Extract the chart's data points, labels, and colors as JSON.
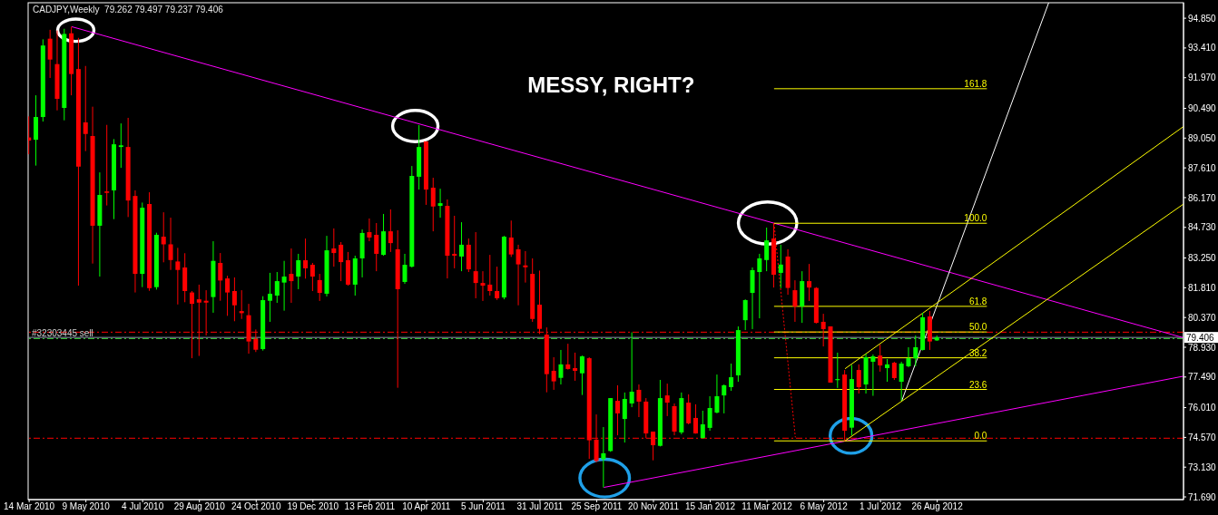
{
  "chart_data": {
    "type": "candlestick",
    "title": "CADJPY,Weekly  79.262 79.497 79.237 79.406",
    "annotations": [
      "MESSY, RIGHT?"
    ],
    "x": [
      "2010-03-14",
      "2010-03-21",
      "2010-03-28",
      "2010-04-04",
      "2010-04-11",
      "2010-04-18",
      "2010-04-25",
      "2010-05-02",
      "2010-05-09",
      "2010-05-16",
      "2010-05-23",
      "2010-05-30",
      "2010-06-06",
      "2010-06-13",
      "2010-06-20",
      "2010-06-27",
      "2010-07-04",
      "2010-07-11",
      "2010-07-18",
      "2010-07-25",
      "2010-08-01",
      "2010-08-08",
      "2010-08-15",
      "2010-08-22",
      "2010-08-29",
      "2010-09-05",
      "2010-09-12",
      "2010-09-19",
      "2010-09-26",
      "2010-10-03",
      "2010-10-10",
      "2010-10-17",
      "2010-10-24",
      "2010-10-31",
      "2010-11-07",
      "2010-11-14",
      "2010-11-21",
      "2010-11-28",
      "2010-12-05",
      "2010-12-12",
      "2010-12-19",
      "2010-12-26",
      "2011-01-02",
      "2011-01-09",
      "2011-01-16",
      "2011-01-23",
      "2011-01-30",
      "2011-02-06",
      "2011-02-13",
      "2011-02-20",
      "2011-02-27",
      "2011-03-06",
      "2011-03-13",
      "2011-03-20",
      "2011-03-27",
      "2011-04-03",
      "2011-04-10",
      "2011-04-17",
      "2011-04-24",
      "2011-05-01",
      "2011-05-08",
      "2011-05-15",
      "2011-05-22",
      "2011-05-29",
      "2011-06-05",
      "2011-06-12",
      "2011-06-19",
      "2011-06-26",
      "2011-07-03",
      "2011-07-10",
      "2011-07-17",
      "2011-07-24",
      "2011-07-31",
      "2011-08-07",
      "2011-08-14",
      "2011-08-21",
      "2011-08-28",
      "2011-09-04",
      "2011-09-11",
      "2011-09-18",
      "2011-09-25",
      "2011-10-02",
      "2011-10-09",
      "2011-10-16",
      "2011-10-23",
      "2011-10-30",
      "2011-11-06",
      "2011-11-13",
      "2011-11-20",
      "2011-11-27",
      "2011-12-04",
      "2011-12-11",
      "2011-12-18",
      "2011-12-25",
      "2012-01-01",
      "2012-01-08",
      "2012-01-15",
      "2012-01-22",
      "2012-01-29",
      "2012-02-05",
      "2012-02-12",
      "2012-02-19",
      "2012-02-26",
      "2012-03-04",
      "2012-03-11",
      "2012-03-18",
      "2012-03-25",
      "2012-04-01",
      "2012-04-08",
      "2012-04-15",
      "2012-04-22",
      "2012-04-29",
      "2012-05-06",
      "2012-05-13",
      "2012-05-20",
      "2012-05-27",
      "2012-06-03",
      "2012-06-10",
      "2012-06-17",
      "2012-06-24",
      "2012-07-01",
      "2012-07-08",
      "2012-07-15",
      "2012-07-22",
      "2012-07-29",
      "2012-08-05",
      "2012-08-12",
      "2012-08-19",
      "2012-08-26"
    ],
    "ohlc": [
      [
        89.08,
        90.1,
        88.27,
        88.93
      ],
      [
        88.97,
        91.12,
        87.72,
        90.07
      ],
      [
        90.07,
        93.83,
        89.85,
        93.53
      ],
      [
        93.86,
        94.29,
        91.96,
        92.85
      ],
      [
        92.63,
        94.26,
        90.39,
        90.95
      ],
      [
        90.51,
        94.34,
        89.91,
        94.09
      ],
      [
        94.12,
        94.44,
        91.12,
        92.15
      ],
      [
        92.39,
        93.9,
        81.91,
        87.67
      ],
      [
        89.81,
        92.54,
        88.42,
        89.25
      ],
      [
        89.15,
        90.57,
        82.98,
        84.81
      ],
      [
        84.81,
        87.39,
        82.35,
        86.3
      ],
      [
        86.47,
        89.69,
        85.79,
        86.4
      ],
      [
        86.52,
        89.0,
        85.13,
        88.75
      ],
      [
        88.62,
        89.76,
        87.61,
        88.7
      ],
      [
        88.62,
        90.03,
        85.23,
        86.03
      ],
      [
        86.25,
        86.52,
        81.58,
        82.48
      ],
      [
        82.48,
        85.93,
        81.84,
        85.68
      ],
      [
        85.86,
        86.43,
        81.66,
        81.79
      ],
      [
        81.84,
        84.47,
        81.72,
        84.37
      ],
      [
        84.28,
        85.46,
        83.04,
        83.91
      ],
      [
        83.91,
        85.2,
        82.67,
        83.15
      ],
      [
        83.08,
        83.74,
        81.0,
        82.67
      ],
      [
        82.79,
        83.48,
        81.11,
        81.65
      ],
      [
        81.58,
        81.65,
        78.4,
        81.03
      ],
      [
        81.25,
        81.96,
        78.51,
        81.09
      ],
      [
        81.18,
        81.69,
        79.5,
        81.09
      ],
      [
        81.36,
        84.06,
        80.6,
        83.11
      ],
      [
        83.01,
        83.49,
        81.18,
        82.16
      ],
      [
        82.26,
        82.39,
        80.45,
        81.58
      ],
      [
        81.65,
        82.31,
        80.19,
        80.96
      ],
      [
        80.68,
        81.69,
        80.3,
        80.58
      ],
      [
        80.48,
        81.03,
        78.62,
        79.21
      ],
      [
        79.34,
        79.79,
        78.7,
        78.81
      ],
      [
        78.84,
        81.4,
        78.77,
        81.21
      ],
      [
        81.18,
        82.53,
        80.16,
        81.52
      ],
      [
        81.43,
        82.57,
        81.08,
        82.13
      ],
      [
        82.06,
        83.11,
        80.7,
        82.35
      ],
      [
        82.48,
        83.71,
        81.08,
        82.13
      ],
      [
        82.35,
        83.45,
        81.74,
        83.14
      ],
      [
        83.14,
        84.19,
        82.25,
        82.75
      ],
      [
        82.92,
        83.01,
        81.65,
        82.35
      ],
      [
        82.18,
        82.48,
        81.17,
        81.56
      ],
      [
        81.52,
        84.32,
        81.39,
        83.62
      ],
      [
        83.71,
        84.68,
        82.83,
        83.49
      ],
      [
        83.89,
        84.02,
        82.13,
        83.05
      ],
      [
        83.14,
        83.54,
        81.91,
        81.96
      ],
      [
        81.96,
        83.36,
        81.43,
        83.23
      ],
      [
        83.23,
        84.63,
        82.31,
        84.46
      ],
      [
        84.5,
        85.16,
        84.06,
        84.24
      ],
      [
        84.37,
        84.94,
        82.61,
        83.45
      ],
      [
        83.4,
        85.38,
        83.36,
        84.54
      ],
      [
        84.54,
        85.6,
        83.54,
        83.97
      ],
      [
        83.67,
        84.59,
        76.97,
        81.74
      ],
      [
        82.09,
        83.45,
        82.0,
        82.92
      ],
      [
        82.83,
        87.7,
        82.79,
        87.22
      ],
      [
        87.18,
        89.68,
        86.56,
        88.62
      ],
      [
        88.89,
        88.89,
        85.82,
        86.56
      ],
      [
        86.65,
        87.13,
        84.54,
        85.74
      ],
      [
        85.77,
        86.6,
        85.2,
        85.9
      ],
      [
        85.77,
        86.08,
        82.26,
        83.36
      ],
      [
        83.45,
        85.29,
        82.75,
        83.36
      ],
      [
        83.32,
        84.98,
        82.61,
        83.89
      ],
      [
        83.89,
        84.19,
        82.57,
        82.7
      ],
      [
        82.61,
        84.5,
        81.3,
        82.04
      ],
      [
        82.04,
        82.61,
        81.17,
        81.91
      ],
      [
        81.96,
        83.4,
        81.43,
        81.65
      ],
      [
        81.65,
        82.83,
        81.22,
        81.3
      ],
      [
        81.34,
        84.32,
        81.25,
        84.28
      ],
      [
        84.24,
        85.06,
        83.3,
        83.42
      ],
      [
        83.67,
        83.89,
        80.96,
        82.94
      ],
      [
        82.89,
        83.58,
        82.06,
        82.8
      ],
      [
        82.48,
        83.23,
        80.16,
        80.3
      ],
      [
        80.99,
        82.64,
        79.57,
        79.82
      ],
      [
        79.54,
        79.89,
        76.75,
        77.63
      ],
      [
        77.79,
        78.45,
        76.87,
        77.28
      ],
      [
        77.45,
        78.8,
        77.13,
        78.1
      ],
      [
        78.1,
        79.1,
        77.85,
        77.88
      ],
      [
        77.92,
        78.67,
        77.31,
        77.79
      ],
      [
        77.67,
        78.53,
        76.62,
        78.49
      ],
      [
        78.4,
        78.45,
        73.53,
        74.43
      ],
      [
        74.46,
        75.68,
        73.36,
        73.43
      ],
      [
        73.51,
        75.07,
        72.15,
        73.8
      ],
      [
        73.91,
        76.47,
        73.87,
        76.47
      ],
      [
        76.34,
        77.09,
        74.67,
        75.73
      ],
      [
        75.46,
        76.74,
        74.32,
        76.43
      ],
      [
        76.21,
        79.65,
        76.03,
        76.78
      ],
      [
        76.87,
        77.13,
        75.55,
        76.3
      ],
      [
        76.3,
        76.47,
        74.53,
        74.76
      ],
      [
        74.85,
        74.85,
        73.46,
        74.19
      ],
      [
        74.16,
        77.35,
        74.13,
        76.47
      ],
      [
        76.6,
        77.17,
        75.6,
        76.25
      ],
      [
        76.08,
        76.21,
        74.67,
        74.85
      ],
      [
        74.81,
        76.74,
        74.72,
        76.47
      ],
      [
        76.25,
        76.65,
        75.2,
        75.25
      ],
      [
        75.51,
        76.17,
        74.75,
        74.76
      ],
      [
        74.54,
        75.86,
        74.51,
        75.2
      ],
      [
        75.03,
        76.56,
        74.89,
        75.99
      ],
      [
        75.77,
        77.61,
        75.73,
        76.56
      ],
      [
        76.6,
        77.13,
        75.73,
        77.09
      ],
      [
        77.0,
        78.14,
        76.82,
        77.48
      ],
      [
        77.57,
        79.94,
        77.26,
        79.76
      ],
      [
        80.24,
        81.25,
        79.76,
        81.21
      ],
      [
        81.56,
        82.79,
        79.81,
        82.66
      ],
      [
        82.57,
        83.45,
        80.33,
        83.23
      ],
      [
        83.15,
        84.72,
        82.61,
        84.1
      ],
      [
        84.19,
        84.93,
        81.82,
        82.44
      ],
      [
        82.53,
        83.89,
        81.79,
        82.93
      ],
      [
        83.32,
        83.67,
        81.47,
        81.8
      ],
      [
        81.69,
        82.17,
        80.16,
        80.9
      ],
      [
        80.9,
        82.61,
        80.11,
        82.13
      ],
      [
        82.13,
        82.96,
        81.17,
        81.82
      ],
      [
        81.8,
        81.84,
        80.08,
        80.11
      ],
      [
        80.16,
        80.55,
        78.97,
        79.81
      ],
      [
        79.94,
        79.94,
        77.22,
        77.22
      ],
      [
        77.34,
        78.67,
        76.96,
        77.39
      ],
      [
        77.61,
        77.83,
        74.4,
        74.89
      ],
      [
        75.04,
        78.07,
        74.67,
        77.39
      ],
      [
        77.83,
        78.1,
        76.69,
        77.0
      ],
      [
        77.13,
        78.62,
        76.69,
        78.45
      ],
      [
        78.23,
        78.58,
        76.58,
        78.49
      ],
      [
        78.53,
        79.06,
        77.75,
        78.05
      ],
      [
        77.92,
        78.36,
        77.26,
        78.1
      ],
      [
        78.18,
        78.23,
        77.35,
        77.44
      ],
      [
        77.26,
        78.23,
        76.34,
        78.14
      ],
      [
        78.01,
        78.93,
        77.96,
        78.4
      ],
      [
        78.39,
        79.5,
        78.01,
        78.93
      ],
      [
        78.8,
        80.6,
        78.77,
        80.38
      ],
      [
        80.42,
        80.68,
        78.8,
        79.21
      ],
      [
        79.262,
        79.497,
        79.237,
        79.406
      ]
    ],
    "colors": [
      "#ff0000",
      "#00ff00",
      "#00ff00",
      "#ff0000",
      "#ff0000",
      "#00ff00",
      "#ff0000",
      "#ff0000",
      "#ff0000",
      "#ff0000",
      "#00ff00",
      "#ff0000",
      "#00ff00",
      "#00ff00",
      "#ff0000",
      "#ff0000",
      "#00ff00",
      "#ff0000",
      "#00ff00",
      "#ff0000",
      "#ff0000",
      "#ff0000",
      "#ff0000",
      "#ff0000",
      "#ff0000",
      "#ff0000",
      "#00ff00",
      "#ff0000",
      "#ff0000",
      "#ff0000",
      "#ff0000",
      "#ff0000",
      "#ff0000",
      "#00ff00",
      "#00ff00",
      "#00ff00",
      "#00ff00",
      "#ff0000",
      "#00ff00",
      "#ff0000",
      "#ff0000",
      "#ff0000",
      "#00ff00",
      "#ff0000",
      "#ff0000",
      "#ff0000",
      "#00ff00",
      "#00ff00",
      "#ff0000",
      "#ff0000",
      "#00ff00",
      "#ff0000",
      "#ff0000",
      "#00ff00",
      "#00ff00",
      "#00ff00",
      "#ff0000",
      "#ff0000",
      "#00ff00",
      "#ff0000",
      "#ff0000",
      "#00ff00",
      "#ff0000",
      "#ff0000",
      "#ff0000",
      "#ff0000",
      "#ff0000",
      "#00ff00",
      "#ff0000",
      "#ff0000",
      "#ff0000",
      "#ff0000",
      "#ff0000",
      "#ff0000",
      "#ff0000",
      "#00ff00",
      "#ff0000",
      "#ff0000",
      "#00ff00",
      "#ff0000",
      "#ff0000",
      "#00ff00",
      "#00ff00",
      "#ff0000",
      "#00ff00",
      "#00ff00",
      "#ff0000",
      "#ff0000",
      "#ff0000",
      "#00ff00",
      "#ff0000",
      "#ff0000",
      "#00ff00",
      "#ff0000",
      "#ff0000",
      "#00ff00",
      "#00ff00",
      "#00ff00",
      "#00ff00",
      "#00ff00",
      "#00ff00",
      "#00ff00",
      "#00ff00",
      "#00ff00",
      "#00ff00",
      "#ff0000",
      "#00ff00",
      "#ff0000",
      "#ff0000",
      "#00ff00",
      "#ff0000",
      "#ff0000",
      "#ff0000",
      "#ff0000",
      "#00ff00",
      "#ff0000",
      "#00ff00",
      "#ff0000",
      "#00ff00",
      "#00ff00",
      "#ff0000",
      "#00ff00",
      "#ff0000",
      "#00ff00",
      "#00ff00",
      "#00ff00",
      "#00ff00",
      "#ff0000",
      "#00ff00"
    ],
    "xlim": [
      "2010-03-13",
      "2013-04-26"
    ],
    "xticks": [
      {
        "value": "2010-03-14",
        "label": "14 Mar 2010"
      },
      {
        "value": "2010-05-09",
        "label": "9 May 2010"
      },
      {
        "value": "2010-07-04",
        "label": "4 Jul 2010"
      },
      {
        "value": "2010-08-29",
        "label": "29 Aug 2010"
      },
      {
        "value": "2010-10-24",
        "label": "24 Oct 2010"
      },
      {
        "value": "2010-12-19",
        "label": "19 Dec 2010"
      },
      {
        "value": "2011-02-13",
        "label": "13 Feb 2011"
      },
      {
        "value": "2011-04-10",
        "label": "10 Apr 2011"
      },
      {
        "value": "2011-06-05",
        "label": "5 Jun 2011"
      },
      {
        "value": "2011-07-31",
        "label": "31 Jul 2011"
      },
      {
        "value": "2011-09-25",
        "label": "25 Sep 2011"
      },
      {
        "value": "2011-11-20",
        "label": "20 Nov 2011"
      },
      {
        "value": "2012-01-15",
        "label": "15 Jan 2012"
      },
      {
        "value": "2012-03-11",
        "label": "11 Mar 2012"
      },
      {
        "value": "2012-05-06",
        "label": "6 May 2012"
      },
      {
        "value": "2012-07-01",
        "label": "1 Jul 2012"
      },
      {
        "value": "2012-08-26",
        "label": "26 Aug 2012"
      }
    ],
    "ylim": [
      71.56,
      95.6
    ],
    "yticks": [
      {
        "value": 94.85,
        "label": "94.850"
      },
      {
        "value": 93.41,
        "label": "93.410"
      },
      {
        "value": 91.97,
        "label": "91.970"
      },
      {
        "value": 90.49,
        "label": "90.490"
      },
      {
        "value": 89.05,
        "label": "89.050"
      },
      {
        "value": 87.61,
        "label": "87.610"
      },
      {
        "value": 86.17,
        "label": "86.170"
      },
      {
        "value": 84.73,
        "label": "84.730"
      },
      {
        "value": 83.25,
        "label": "83.250"
      },
      {
        "value": 81.81,
        "label": "81.810"
      },
      {
        "value": 80.37,
        "label": "80.370"
      },
      {
        "value": 78.93,
        "label": "78.930"
      },
      {
        "value": 77.49,
        "label": "77.490"
      },
      {
        "value": 76.01,
        "label": "76.010"
      },
      {
        "value": 74.57,
        "label": "74.570"
      },
      {
        "value": 73.13,
        "label": "73.130"
      },
      {
        "value": 71.69,
        "label": "71.690"
      }
    ],
    "series": [
      {
        "type": "line",
        "color": "#ff00ff",
        "x": [
          "2010-04-25",
          "2013-04-26"
        ],
        "values": [
          94.44,
          79.39
        ]
      },
      {
        "type": "line",
        "color": "#ff00ff",
        "x": [
          "2011-10-02",
          "2013-04-26"
        ],
        "values": [
          72.15,
          77.53
        ]
      },
      {
        "type": "line",
        "color": "#ffffff",
        "x": [
          "2012-07-22",
          "2012-12-14"
        ],
        "values": [
          76.34,
          95.6
        ]
      },
      {
        "type": "line",
        "color": "#ffff00",
        "x": [
          "2012-05-27",
          "2013-04-26"
        ],
        "values": [
          77.89,
          89.61
        ]
      },
      {
        "type": "line",
        "color": "#ffff00",
        "x": [
          "2012-05-27",
          "2013-04-26"
        ],
        "values": [
          74.4,
          85.86
        ]
      },
      {
        "type": "line",
        "color": "#ff0000",
        "line_style": "dotted",
        "x": [
          "2012-03-18",
          "2012-04-08"
        ],
        "values": [
          84.93,
          74.57
        ]
      },
      {
        "type": "line",
        "name": "161.8",
        "color": "#ffff00",
        "x": [
          "2012-03-18",
          "2012-10-14"
        ],
        "values": [
          91.44,
          91.44
        ]
      },
      {
        "type": "line",
        "name": "100.0",
        "color": "#ffff00",
        "x": [
          "2012-03-18",
          "2012-10-14"
        ],
        "values": [
          84.93,
          84.93
        ]
      },
      {
        "type": "line",
        "name": "61.8",
        "color": "#ffff00",
        "x": [
          "2012-03-18",
          "2012-10-14"
        ],
        "values": [
          80.91,
          80.91
        ]
      },
      {
        "type": "line",
        "name": "50.0",
        "color": "#ffff00",
        "x": [
          "2012-03-18",
          "2012-10-14"
        ],
        "values": [
          79.67,
          79.67
        ]
      },
      {
        "type": "line",
        "name": "38.2",
        "color": "#ffff00",
        "x": [
          "2012-03-18",
          "2012-10-14"
        ],
        "values": [
          78.42,
          78.42
        ]
      },
      {
        "type": "line",
        "name": "23.6",
        "color": "#ffff00",
        "x": [
          "2012-03-18",
          "2012-10-14"
        ],
        "values": [
          76.89,
          76.89
        ]
      },
      {
        "type": "line",
        "name": "0.0",
        "color": "#ffff00",
        "x": [
          "2012-03-18",
          "2012-10-14"
        ],
        "values": [
          74.4,
          74.4
        ]
      }
    ],
    "ref_lines": [
      {
        "axis": "y",
        "value": 79.66,
        "color": "#ff0000",
        "line_style": "dashed"
      },
      {
        "axis": "y",
        "value": 74.53,
        "color": "#ff0000",
        "line_style": "dashed"
      },
      {
        "axis": "y",
        "value": 79.35,
        "label": "#32303445 sell",
        "color": "#32cd32",
        "line_style": "dashed"
      },
      {
        "axis": "y",
        "value": 79.406,
        "label": "79.406",
        "color": "#8c96aa"
      }
    ]
  }
}
